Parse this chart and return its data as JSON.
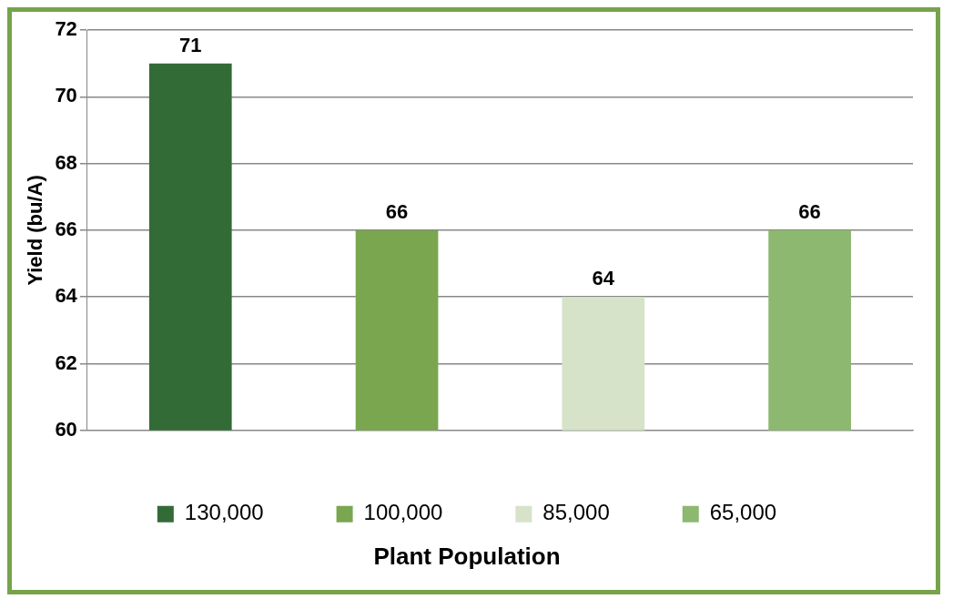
{
  "chart_data": {
    "type": "bar",
    "stacked": true,
    "categories": [
      null,
      null,
      null,
      null
    ],
    "series": [
      {
        "name": "130,000",
        "color": "#336b36",
        "values": [
          71,
          null,
          null,
          null
        ]
      },
      {
        "name": "100,000",
        "color": "#7aa650",
        "values": [
          null,
          66,
          null,
          null
        ]
      },
      {
        "name": "85,000",
        "color": "#d6e3c9",
        "values": [
          null,
          null,
          64,
          null
        ]
      },
      {
        "name": "65,000",
        "color": "#8cb870",
        "values": [
          null,
          null,
          null,
          66
        ]
      }
    ],
    "ylim": [
      60,
      72
    ],
    "yticks": [
      60,
      62,
      64,
      66,
      68,
      70,
      72
    ],
    "grid": "y",
    "ylabel": "Yield (bu/A)",
    "xlabel": "Plant Population",
    "legend": "bottom",
    "data_labels": true
  }
}
